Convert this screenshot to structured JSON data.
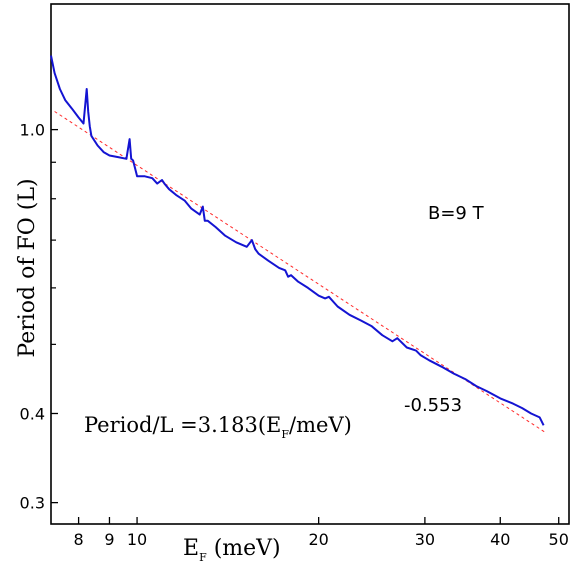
{
  "chart_data": {
    "type": "line",
    "xscale": "log",
    "yscale": "log",
    "xlim": [
      7.2,
      52
    ],
    "ylim": [
      0.28,
      1.5
    ],
    "xlabel_main": "E",
    "xlabel_sub": "F",
    "xlabel_unit": " (meV)",
    "ylabel": "Period of FO (L)",
    "x_tick_labels": [
      {
        "value": 8,
        "label": "8"
      },
      {
        "value": 9,
        "label": "9"
      },
      {
        "value": 10,
        "label": "10"
      },
      {
        "value": 20,
        "label": "20"
      },
      {
        "value": 30,
        "label": "30"
      },
      {
        "value": 40,
        "label": "40"
      },
      {
        "value": 50,
        "label": "50"
      }
    ],
    "y_tick_labels": [
      {
        "value": 1.0,
        "label": "1.0"
      },
      {
        "value": 0.4,
        "label": "0.4"
      },
      {
        "value": 0.3,
        "label": "0.3"
      }
    ],
    "y_minor_ticks": [
      0.5,
      0.6,
      0.7,
      0.8,
      0.9
    ],
    "annotation_field": "B=9 T",
    "annotation_fit": {
      "prefix": "Period/L =3.183(E",
      "sub": "F",
      "suffix": "/meV)",
      "exponent": "-0.553"
    },
    "fit": {
      "coef": 3.183,
      "exponent": -0.553,
      "color": "#ff2a2a"
    },
    "series": [
      {
        "color": "#1414d2",
        "x": [
          7.2,
          7.3,
          7.45,
          7.6,
          7.8,
          8.0,
          8.15,
          8.25,
          8.3,
          8.35,
          8.4,
          8.6,
          8.8,
          9.0,
          9.3,
          9.6,
          9.72,
          9.78,
          9.85,
          10.0,
          10.3,
          10.6,
          10.8,
          11.0,
          11.1,
          11.3,
          11.6,
          12.0,
          12.3,
          12.7,
          12.85,
          12.95,
          13.1,
          13.5,
          14.0,
          14.6,
          15.2,
          15.5,
          15.7,
          15.9,
          16.5,
          17.2,
          17.6,
          17.8,
          18.0,
          18.5,
          19.2,
          20.0,
          20.5,
          20.8,
          21.5,
          22.5,
          23.5,
          24.5,
          25.5,
          26.5,
          27.0,
          28.0,
          29.0,
          29.5,
          30.5,
          32.0,
          33.5,
          35.0,
          36.5,
          38.0,
          40.0,
          42.0,
          43.5,
          45.0,
          46.5,
          47.2
        ],
        "y": [
          1.27,
          1.2,
          1.14,
          1.1,
          1.07,
          1.04,
          1.02,
          1.14,
          1.06,
          1.01,
          0.98,
          0.95,
          0.93,
          0.92,
          0.915,
          0.91,
          0.97,
          0.91,
          0.905,
          0.86,
          0.86,
          0.855,
          0.84,
          0.85,
          0.84,
          0.825,
          0.81,
          0.795,
          0.775,
          0.76,
          0.78,
          0.745,
          0.745,
          0.73,
          0.71,
          0.695,
          0.685,
          0.7,
          0.68,
          0.67,
          0.655,
          0.64,
          0.635,
          0.622,
          0.625,
          0.612,
          0.6,
          0.585,
          0.58,
          0.583,
          0.565,
          0.55,
          0.54,
          0.53,
          0.515,
          0.505,
          0.51,
          0.495,
          0.49,
          0.483,
          0.475,
          0.465,
          0.455,
          0.447,
          0.437,
          0.43,
          0.42,
          0.413,
          0.407,
          0.4,
          0.395,
          0.385
        ]
      }
    ]
  }
}
